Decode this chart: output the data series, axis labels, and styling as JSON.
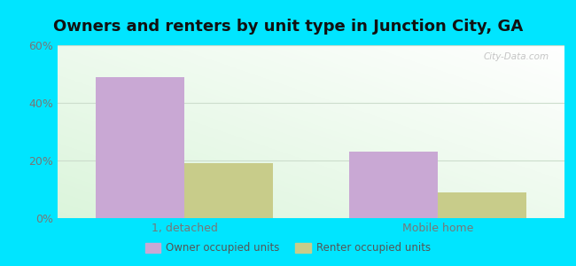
{
  "title": "Owners and renters by unit type in Junction City, GA",
  "categories": [
    "1, detached",
    "Mobile home"
  ],
  "owner_values": [
    49,
    23
  ],
  "renter_values": [
    19,
    9
  ],
  "owner_color": "#c9a8d4",
  "renter_color": "#c8cc8a",
  "ylim": [
    0,
    60
  ],
  "yticks": [
    0,
    20,
    40,
    60
  ],
  "ytick_labels": [
    "0%",
    "20%",
    "40%",
    "60%"
  ],
  "background_outer": "#00e5ff",
  "bar_width": 0.35,
  "legend_owner": "Owner occupied units",
  "legend_renter": "Renter occupied units",
  "watermark": "City-Data.com",
  "title_fontsize": 13,
  "axis_fontsize": 9,
  "grid_color": "#ccddcc",
  "tick_color": "#777777"
}
